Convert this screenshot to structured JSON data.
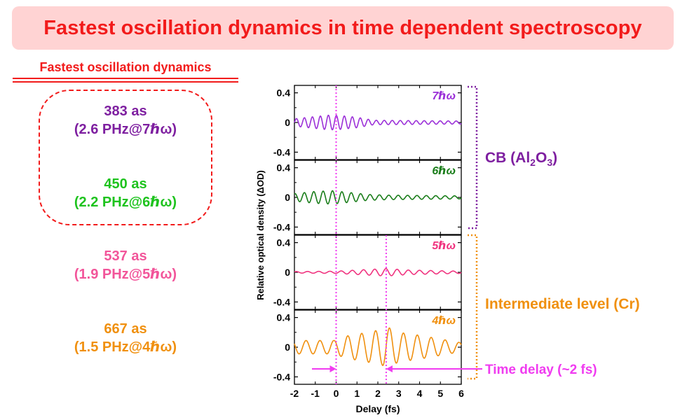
{
  "title": "Fastest oscillation dynamics in time dependent spectroscopy",
  "left_panel": {
    "heading": "Fastest oscillation dynamics",
    "items": [
      {
        "period": "383 as",
        "detail": "(2.6 PHz@7ℏω)",
        "color": "#7e1fa0"
      },
      {
        "period": "450 as",
        "detail": "(2.2 PHz@6ℏω)",
        "color": "#1ec31e"
      },
      {
        "period": "537 as",
        "detail": "(1.9 PHz@5ℏω)",
        "color": "#f2559a"
      },
      {
        "period": "667 as",
        "detail": "(1.5 PHz@4ℏω)",
        "color": "#f0900f"
      }
    ]
  },
  "chart_data": {
    "type": "line",
    "xlabel": "Delay (fs)",
    "ylabel": "Relative optical density (ΔOD)",
    "xlim": [
      -2,
      6
    ],
    "x_ticks": [
      "-2",
      "-1",
      "0",
      "1",
      "2",
      "3",
      "4",
      "5",
      "6"
    ],
    "ylim": [
      -0.5,
      0.5
    ],
    "y_ticks": [
      "0.4",
      "0",
      "-0.4"
    ],
    "markers": [
      {
        "x": 0,
        "color": "#f03cf0",
        "style": "dotted"
      },
      {
        "x": 2.4,
        "color": "#f03cf0",
        "style": "dotted",
        "panel": "5ℏω"
      }
    ],
    "panels": [
      {
        "label": "7ℏω",
        "color": "#9b30d8",
        "series": {
          "period_fs": 0.383,
          "envelope": [
            [
              -2,
              0.05
            ],
            [
              -1,
              0.08
            ],
            [
              -0.3,
              0.1
            ],
            [
              0.3,
              0.09
            ],
            [
              1,
              0.07
            ],
            [
              1.8,
              0.03
            ],
            [
              6,
              0.02
            ]
          ],
          "phase": 0
        }
      },
      {
        "label": "6ℏω",
        "color": "#1a7d1a",
        "series": {
          "period_fs": 0.45,
          "envelope": [
            [
              -2,
              0.05
            ],
            [
              -1,
              0.08
            ],
            [
              -0.2,
              0.09
            ],
            [
              0.5,
              0.07
            ],
            [
              1.5,
              0.04
            ],
            [
              2.5,
              0.03
            ],
            [
              6,
              0.02
            ]
          ],
          "phase": 1.2
        }
      },
      {
        "label": "5ℏω",
        "color": "#f0337f",
        "series": {
          "period_fs": 0.537,
          "envelope": [
            [
              -2,
              0.01
            ],
            [
              0,
              0.015
            ],
            [
              1,
              0.03
            ],
            [
              2.4,
              0.05
            ],
            [
              3.5,
              0.03
            ],
            [
              6,
              0.015
            ]
          ],
          "phase": 0.5
        }
      },
      {
        "label": "4ℏω",
        "color": "#f0900f",
        "series": {
          "period_fs": 0.667,
          "envelope": [
            [
              -2,
              0.09
            ],
            [
              -0.1,
              0.09
            ],
            [
              0.5,
              0.15
            ],
            [
              1.5,
              0.2
            ],
            [
              2.2,
              0.24
            ],
            [
              2.4,
              0.28
            ],
            [
              3,
              0.2
            ],
            [
              4,
              0.16
            ],
            [
              5,
              0.11
            ],
            [
              6,
              0.06
            ]
          ],
          "phase": 2.6
        }
      }
    ],
    "annotations": [
      {
        "text": "Time delay (~2 fs)",
        "color": "#f03cf0"
      }
    ],
    "groups": [
      {
        "label_main": "CB (Al",
        "sub1": "2",
        "mid": "O",
        "sub2": "3",
        "tail": ")",
        "color": "#7e1fa0",
        "panels": [
          0,
          1
        ]
      },
      {
        "label": "Intermediate level (Cr)",
        "color": "#f0900f",
        "panels": [
          2,
          3
        ]
      }
    ]
  }
}
